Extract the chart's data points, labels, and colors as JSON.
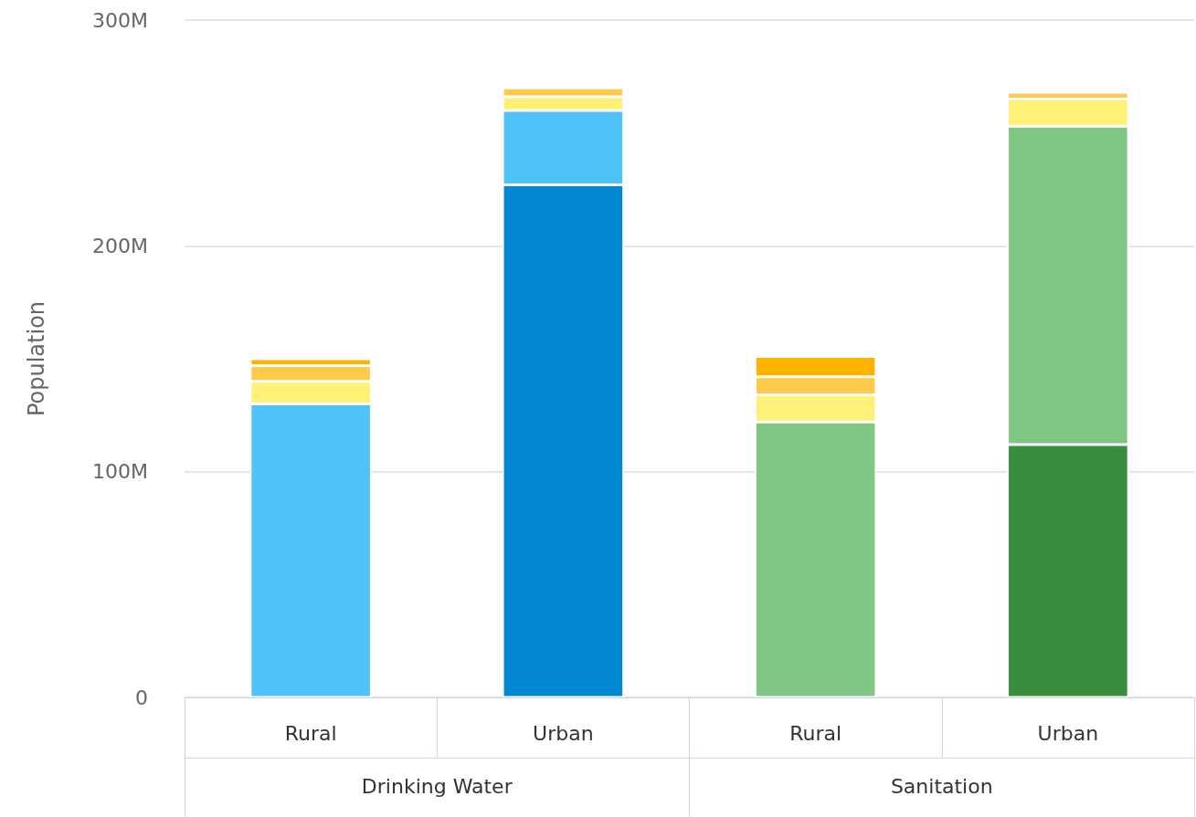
{
  "chart_data": {
    "type": "bar",
    "stacked": true,
    "ylabel": "Population",
    "categories": [
      "Rural",
      "Urban",
      "Rural",
      "Urban"
    ],
    "annotations": [
      "Drinking Water",
      "Sanitation"
    ],
    "series": [
      {
        "colors": [
          "#0288d1",
          "#0288d1",
          "#388e3c",
          "#388e3c"
        ],
        "values": [
          null,
          227,
          null,
          112
        ]
      },
      {
        "colors": [
          "#4fc3f7",
          "#4fc3f7",
          "#81c784",
          "#81c784"
        ],
        "values": [
          130,
          33,
          122,
          141
        ]
      },
      {
        "color": "#fff176",
        "values": [
          10,
          6,
          12,
          12
        ]
      },
      {
        "color": "#ffca4a",
        "values": [
          7,
          4,
          8,
          3
        ]
      },
      {
        "color": "#ffb300",
        "values": [
          3,
          null,
          9,
          null
        ]
      }
    ],
    "ylim": [
      0,
      300
    ],
    "yticks": [
      {
        "value": 0,
        "label": "0"
      },
      {
        "value": 100,
        "label": "100M"
      },
      {
        "value": 200,
        "label": "200M"
      },
      {
        "value": 300,
        "label": "300M"
      }
    ],
    "grid": "y"
  }
}
